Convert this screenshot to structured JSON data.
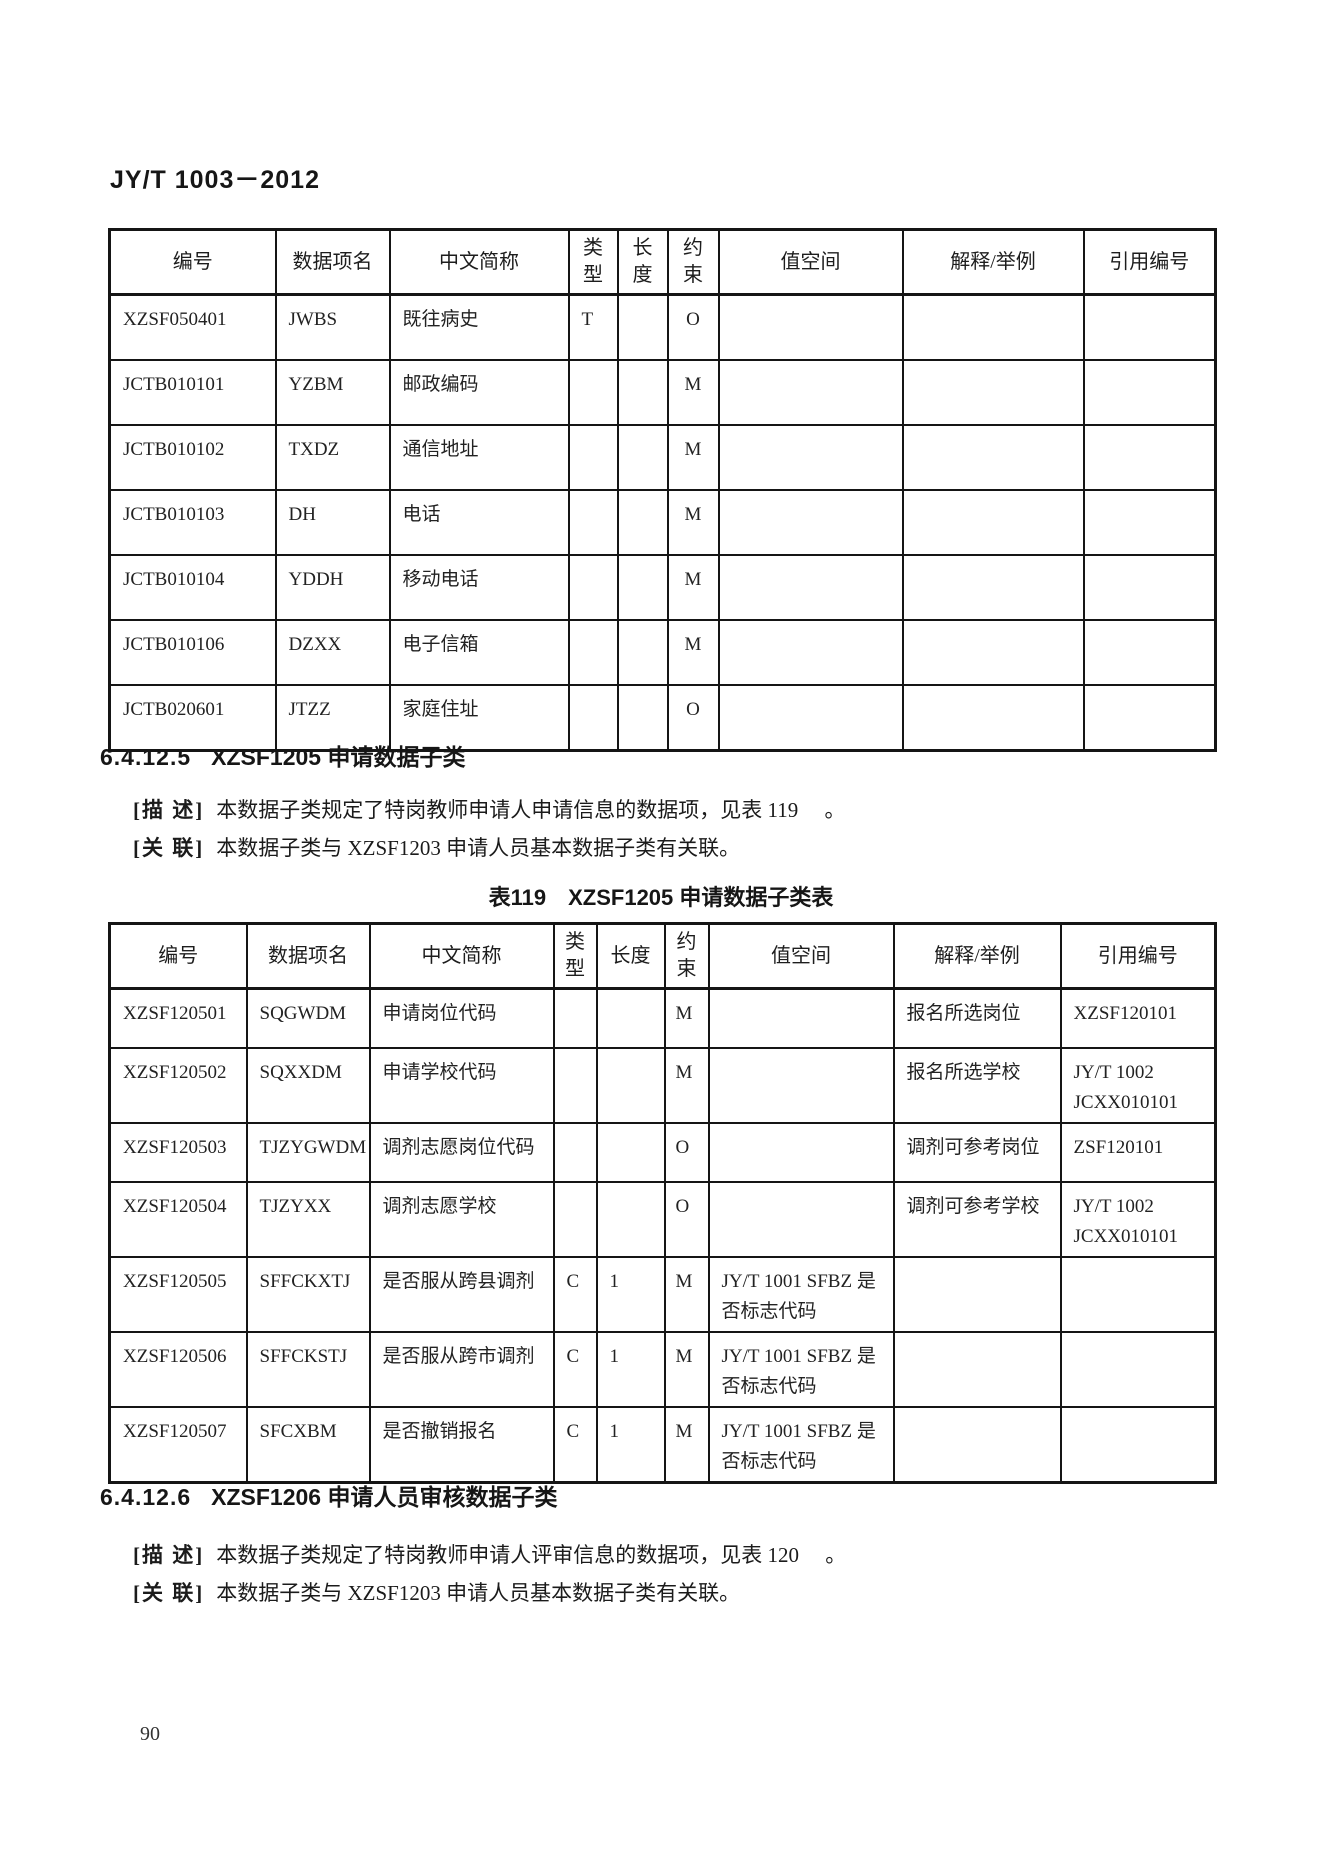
{
  "page": {
    "doc_code": "JY/T 1003－2012",
    "page_number": "90"
  },
  "table1": {
    "headers": [
      "编号",
      "数据项名",
      "中文简称",
      "类型",
      "长度",
      "约束",
      "值空间",
      "解释/举例",
      "引用编号"
    ],
    "rows": [
      {
        "id": "XZSF050401",
        "name": "JWBS",
        "cn": "既往病史",
        "type": "T",
        "len": "",
        "constraint": "O",
        "value_space": "",
        "example": "",
        "ref": ""
      },
      {
        "id": "JCTB010101",
        "name": "YZBM",
        "cn": "邮政编码",
        "type": "",
        "len": "",
        "constraint": "M",
        "value_space": "",
        "example": "",
        "ref": ""
      },
      {
        "id": "JCTB010102",
        "name": "TXDZ",
        "cn": "通信地址",
        "type": "",
        "len": "",
        "constraint": "M",
        "value_space": "",
        "example": "",
        "ref": ""
      },
      {
        "id": "JCTB010103",
        "name": "DH",
        "cn": "电话",
        "type": "",
        "len": "",
        "constraint": "M",
        "value_space": "",
        "example": "",
        "ref": ""
      },
      {
        "id": "JCTB010104",
        "name": "YDDH",
        "cn": "移动电话",
        "type": "",
        "len": "",
        "constraint": "M",
        "value_space": "",
        "example": "",
        "ref": ""
      },
      {
        "id": "JCTB010106",
        "name": "DZXX",
        "cn": "电子信箱",
        "type": "",
        "len": "",
        "constraint": "M",
        "value_space": "",
        "example": "",
        "ref": ""
      },
      {
        "id": "JCTB020601",
        "name": "JTZZ",
        "cn": "家庭住址",
        "type": "",
        "len": "",
        "constraint": "O",
        "value_space": "",
        "example": "",
        "ref": ""
      }
    ]
  },
  "section1": {
    "number": "6.4.12.5",
    "title": "XZSF1205 申请数据子类",
    "desc_label": "[描 述]",
    "desc_text": "本数据子类规定了特岗教师申请人申请信息的数据项，见表 119 　。",
    "rel_label": "[关 联]",
    "rel_text": "本数据子类与 XZSF1203 申请人员基本数据子类有关联。"
  },
  "table2": {
    "caption_number": "表119",
    "caption_title": "XZSF1205 申请数据子类表",
    "headers": [
      "编号",
      "数据项名",
      "中文简称",
      "类型",
      "长度",
      "约束",
      "值空间",
      "解释/举例",
      "引用编号"
    ],
    "rows": [
      {
        "id": "XZSF120501",
        "name": "SQGWDM",
        "cn": "申请岗位代码",
        "type": "",
        "len": "",
        "constraint": "M",
        "value_space": "",
        "example": "报名所选岗位",
        "ref": "XZSF120101"
      },
      {
        "id": "XZSF120502",
        "name": "SQXXDM",
        "cn": "申请学校代码",
        "type": "",
        "len": "",
        "constraint": "M",
        "value_space": "",
        "example": "报名所选学校",
        "ref": "JY/T 1002 JCXX010101"
      },
      {
        "id": "XZSF120503",
        "name": "TJZYGWDM",
        "cn": "调剂志愿岗位代码",
        "type": "",
        "len": "",
        "constraint": "O",
        "value_space": "",
        "example": "调剂可参考岗位",
        "ref": "ZSF120101"
      },
      {
        "id": "XZSF120504",
        "name": "TJZYXX",
        "cn": "调剂志愿学校",
        "type": "",
        "len": "",
        "constraint": "O",
        "value_space": "",
        "example": "调剂可参考学校",
        "ref": "JY/T 1002 JCXX010101"
      },
      {
        "id": "XZSF120505",
        "name": "SFFCKXTJ",
        "cn": "是否服从跨县调剂",
        "type": "C",
        "len": "1",
        "constraint": "M",
        "value_space": "JY/T 1001 SFBZ 是否标志代码",
        "example": "",
        "ref": ""
      },
      {
        "id": "XZSF120506",
        "name": "SFFCKSTJ",
        "cn": "是否服从跨市调剂",
        "type": "C",
        "len": "1",
        "constraint": "M",
        "value_space": "JY/T 1001 SFBZ 是否标志代码",
        "example": "",
        "ref": ""
      },
      {
        "id": "XZSF120507",
        "name": "SFCXBM",
        "cn": "是否撤销报名",
        "type": "C",
        "len": "1",
        "constraint": "M",
        "value_space": "JY/T 1001 SFBZ 是否标志代码",
        "example": "",
        "ref": ""
      }
    ]
  },
  "section2": {
    "number": "6.4.12.6",
    "title": "XZSF1206 申请人员审核数据子类",
    "desc_label": "[描 述]",
    "desc_text": "本数据子类规定了特岗教师申请人评审信息的数据项，见表 120 　。",
    "rel_label": "[关 联]",
    "rel_text": "本数据子类与 XZSF1203 申请人员基本数据子类有关联。"
  }
}
